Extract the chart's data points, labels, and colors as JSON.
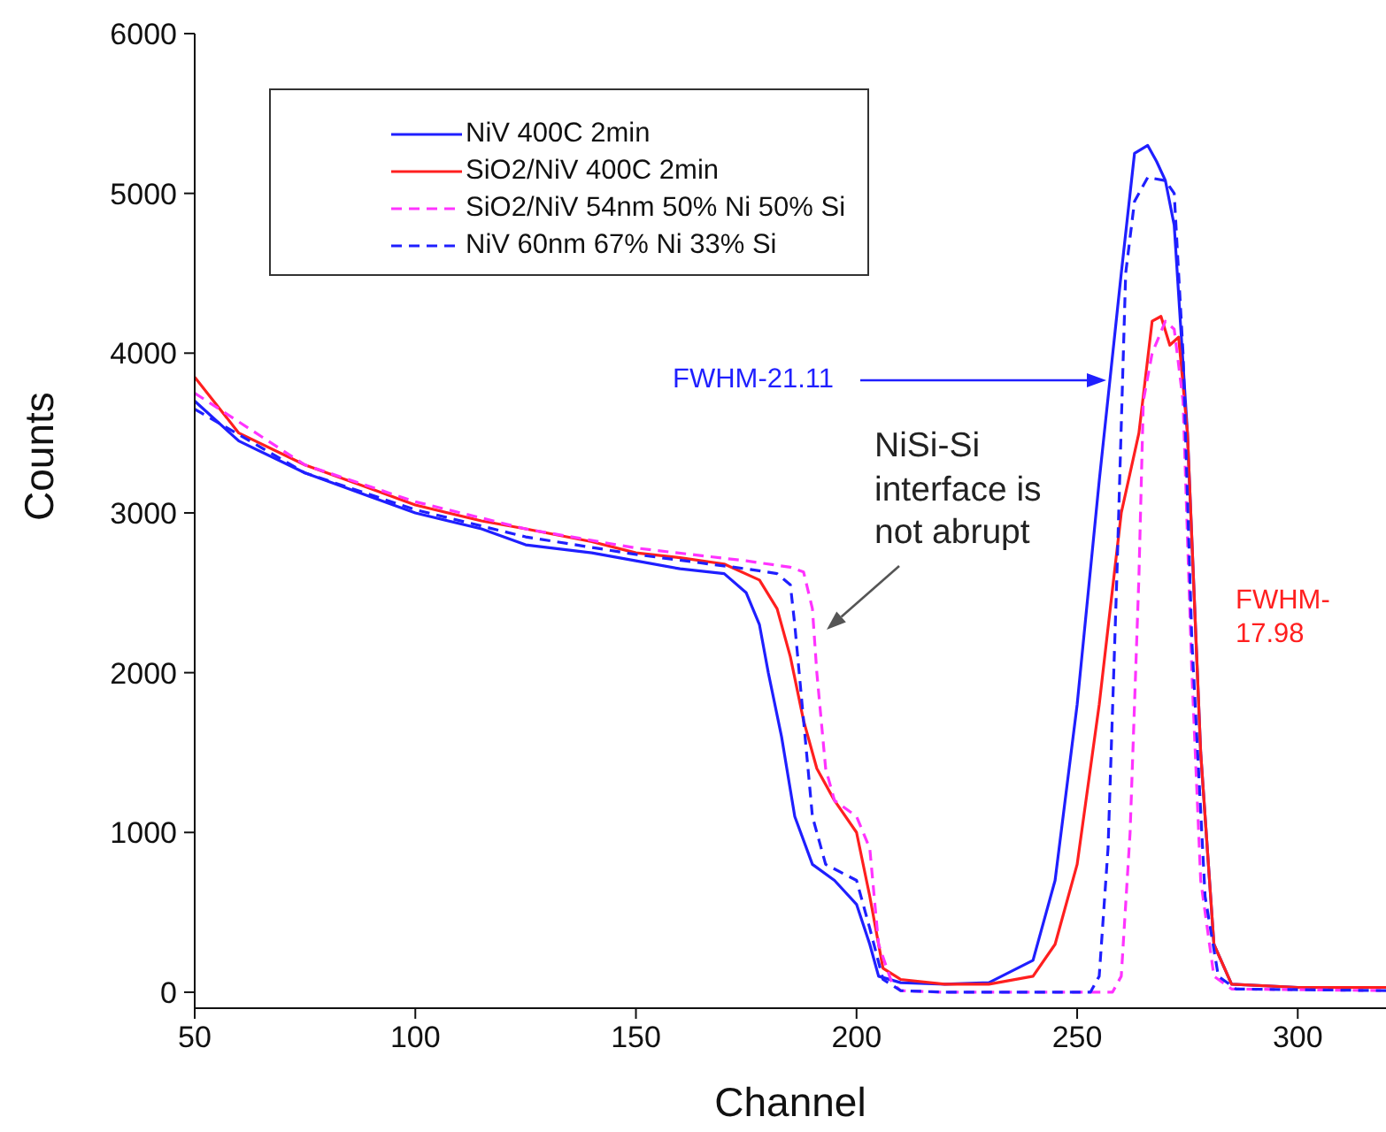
{
  "chart_data": {
    "type": "line",
    "xlabel": "Channel",
    "ylabel": "Counts",
    "xlim": [
      50,
      320
    ],
    "xticks": [
      50,
      100,
      150,
      200,
      250,
      300
    ],
    "ylim": [
      -100,
      6000
    ],
    "yticks": [
      0,
      1000,
      2000,
      3000,
      4000,
      5000,
      6000
    ],
    "legend": "top left",
    "marker": "none",
    "series": [
      {
        "name": "NiV 400C 2min",
        "color": "#1f1fff",
        "line_style": "solid",
        "x": [
          50,
          60,
          75,
          90,
          100,
          115,
          125,
          140,
          150,
          160,
          170,
          175,
          178,
          180,
          183,
          186,
          190,
          195,
          200,
          203,
          205,
          210,
          220,
          230,
          240,
          245,
          250,
          255,
          260,
          263,
          266,
          268,
          270,
          272,
          275,
          278,
          281,
          285,
          300,
          320
        ],
        "values": [
          3700,
          3450,
          3250,
          3100,
          3000,
          2900,
          2800,
          2750,
          2700,
          2650,
          2620,
          2500,
          2300,
          2000,
          1600,
          1100,
          800,
          700,
          550,
          300,
          100,
          60,
          50,
          60,
          200,
          700,
          1800,
          3200,
          4500,
          5250,
          5300,
          5200,
          5080,
          4800,
          3500,
          1500,
          300,
          50,
          30,
          30
        ]
      },
      {
        "name": "SiO2/NiV 400C 2min",
        "color": "#ff1f1f",
        "line_style": "solid",
        "x": [
          50,
          60,
          75,
          90,
          100,
          115,
          125,
          140,
          150,
          160,
          170,
          178,
          182,
          185,
          188,
          191,
          195,
          200,
          203,
          206,
          210,
          220,
          230,
          240,
          245,
          250,
          255,
          260,
          264,
          267,
          269,
          271,
          273,
          275,
          278,
          281,
          285,
          300,
          320
        ],
        "values": [
          3850,
          3500,
          3300,
          3150,
          3050,
          2950,
          2900,
          2820,
          2750,
          2720,
          2680,
          2580,
          2400,
          2100,
          1700,
          1400,
          1200,
          1000,
          600,
          150,
          80,
          50,
          50,
          100,
          300,
          800,
          1800,
          3000,
          3500,
          4200,
          4230,
          4050,
          4100,
          3500,
          1500,
          300,
          50,
          30,
          30
        ]
      },
      {
        "name": "SiO2/NiV 54nm 50% Ni 50% Si",
        "color": "#ff33ff",
        "line_style": "dashed",
        "x": [
          50,
          75,
          100,
          125,
          150,
          175,
          185,
          188,
          190,
          191,
          193,
          195,
          200,
          203,
          205,
          208,
          210,
          220,
          258,
          260,
          262,
          264,
          265,
          267,
          270,
          272,
          274,
          276,
          278,
          281,
          285,
          320
        ],
        "values": [
          3750,
          3300,
          3070,
          2900,
          2780,
          2700,
          2660,
          2630,
          2400,
          2000,
          1400,
          1200,
          1100,
          900,
          300,
          60,
          10,
          0,
          0,
          100,
          1000,
          2600,
          3700,
          4000,
          4200,
          4150,
          3700,
          2000,
          700,
          100,
          20,
          10
        ]
      },
      {
        "name": "NiV 60nm 67% Ni 33% Si",
        "color": "#1f1fff",
        "line_style": "dashed",
        "x": [
          50,
          75,
          100,
          125,
          150,
          175,
          182,
          185,
          186,
          188,
          190,
          193,
          200,
          203,
          206,
          210,
          220,
          253,
          255,
          257,
          259,
          261,
          263,
          266,
          270,
          272,
          274,
          276,
          279,
          282,
          286,
          320
        ],
        "values": [
          3650,
          3250,
          3020,
          2850,
          2740,
          2650,
          2620,
          2550,
          2300,
          1700,
          1100,
          800,
          700,
          400,
          80,
          10,
          0,
          0,
          100,
          900,
          2600,
          4500,
          4950,
          5100,
          5080,
          5000,
          4000,
          2200,
          600,
          100,
          20,
          10
        ]
      }
    ],
    "annotations": [
      "FWHM-21.11",
      "NiSi-Si interface is not abrupt",
      "FWHM-17.98"
    ]
  }
}
